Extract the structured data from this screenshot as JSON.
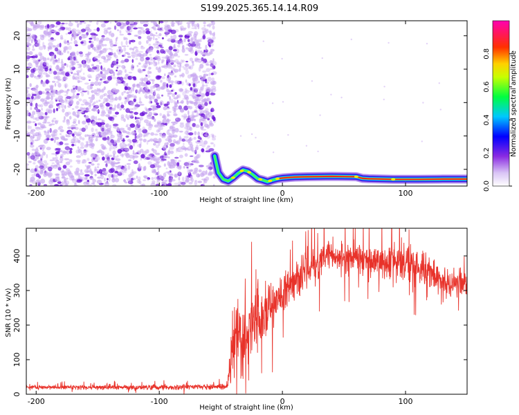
{
  "title": "S199.2025.365.14.14.R09",
  "colors": {
    "snr_line": "#e8322a",
    "scatter_dark": "#6a12d8",
    "scatter_light": "#c8a8f0",
    "axis": "#000000"
  },
  "chart_data": [
    {
      "type": "heatmap",
      "xlabel": "Height of straight line (km)",
      "ylabel": "Frequency (Hz)",
      "xlim": [
        -208,
        150
      ],
      "ylim": [
        -25,
        24.5
      ],
      "xticks": [
        "-200",
        "-100",
        "0",
        "100"
      ],
      "yticks": [
        "-20",
        "-10",
        "0",
        "10",
        "20"
      ],
      "colorbar": {
        "label": "Normalized spectral amplitude",
        "range": [
          0,
          1
        ],
        "ticks": [
          "0.0",
          "0.2",
          "0.4",
          "0.6",
          "0.8"
        ],
        "colormap": "rainbow (white → purple → blue → cyan → green → yellow → red → magenta)"
      },
      "noise_region_x": [
        -208,
        -55
      ],
      "ridge": {
        "x": [
          -55,
          -52,
          -48,
          -44,
          -40,
          -36,
          -32,
          -28,
          -24,
          -20,
          -16,
          -12,
          -8,
          -4,
          0,
          10,
          20,
          40,
          60,
          65,
          70,
          90,
          110,
          130,
          150
        ],
        "freq": [
          -16,
          -21,
          -23,
          -23.5,
          -22.5,
          -21.2,
          -20.2,
          -20.6,
          -21.6,
          -22.8,
          -23.2,
          -23.7,
          -23.2,
          -22.8,
          -22.6,
          -22.3,
          -22.2,
          -22.1,
          -22.2,
          -22.7,
          -22.8,
          -23.0,
          -23.0,
          -22.9,
          -22.9
        ]
      }
    },
    {
      "type": "line",
      "xlabel": "Height of straight line (km)",
      "ylabel": "SNR (10 * v/v)",
      "xlim": [
        -208,
        150
      ],
      "ylim": [
        0,
        480
      ],
      "xticks": [
        "-200",
        "-100",
        "0",
        "100"
      ],
      "yticks": [
        "0",
        "100",
        "200",
        "300",
        "400"
      ],
      "envelope": {
        "x": [
          -208,
          -100,
          -45,
          -40,
          -35,
          -30,
          -25,
          -20,
          -10,
          0,
          10,
          20,
          30,
          40,
          50,
          60,
          70,
          80,
          90,
          100,
          110,
          120,
          130,
          140,
          150
        ],
        "min": [
          10,
          10,
          10,
          20,
          25,
          20,
          70,
          90,
          140,
          200,
          240,
          280,
          310,
          330,
          330,
          320,
          320,
          310,
          300,
          300,
          290,
          280,
          270,
          260,
          260
        ],
        "max": [
          30,
          30,
          35,
          300,
          330,
          280,
          330,
          330,
          350,
          370,
          400,
          440,
          460,
          470,
          470,
          460,
          450,
          460,
          470,
          460,
          440,
          420,
          390,
          380,
          380
        ]
      }
    }
  ]
}
